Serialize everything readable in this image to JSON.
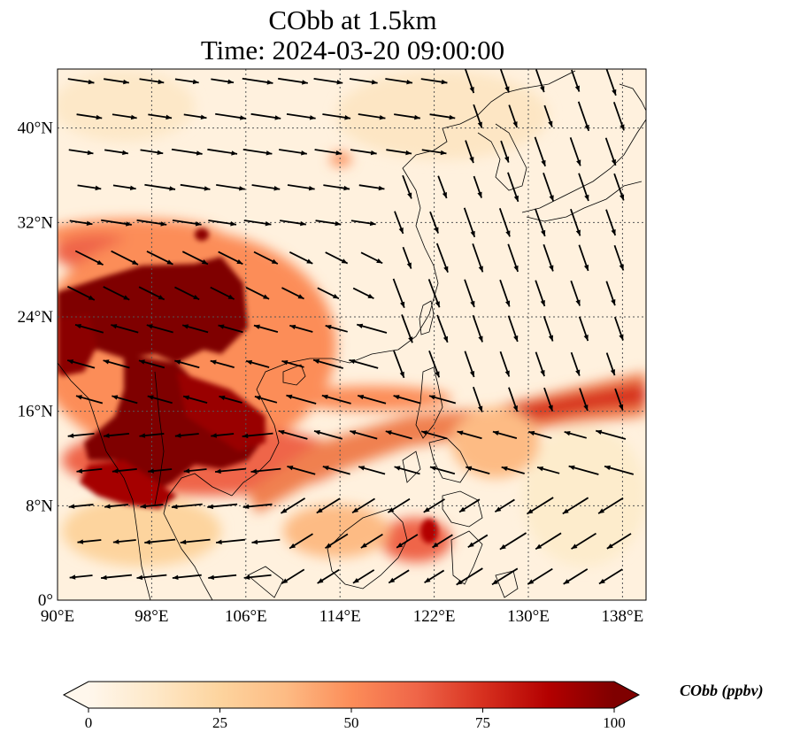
{
  "title": {
    "line1": "CObb at 1.5km",
    "line2": "Time: 2024-03-20 09:00:00"
  },
  "map": {
    "lon_range": [
      90,
      140
    ],
    "lat_range": [
      0,
      45
    ],
    "lon_ticks": [
      {
        "value": 90,
        "label": "90°E"
      },
      {
        "value": 98,
        "label": "98°E"
      },
      {
        "value": 106,
        "label": "106°E"
      },
      {
        "value": 114,
        "label": "114°E"
      },
      {
        "value": 122,
        "label": "122°E"
      },
      {
        "value": 130,
        "label": "130°E"
      },
      {
        "value": 138,
        "label": "138°E"
      }
    ],
    "lat_ticks": [
      {
        "value": 0,
        "label": "0°"
      },
      {
        "value": 8,
        "label": "8°N"
      },
      {
        "value": 16,
        "label": "16°N"
      },
      {
        "value": 24,
        "label": "24°N"
      },
      {
        "value": 32,
        "label": "32°N"
      },
      {
        "value": 40,
        "label": "40°N"
      }
    ],
    "gridlines": true
  },
  "colorbar": {
    "label": "CObb (ppbv)",
    "ticks": [
      {
        "value": 0,
        "label": "0"
      },
      {
        "value": 25,
        "label": "25"
      },
      {
        "value": 50,
        "label": "50"
      },
      {
        "value": 75,
        "label": "75"
      },
      {
        "value": 100,
        "label": "100"
      }
    ],
    "range": [
      0,
      100
    ],
    "colormap": [
      "#fff7ec",
      "#fee8c8",
      "#fdd49e",
      "#fdbb84",
      "#fc8d59",
      "#ef6548",
      "#d7301f",
      "#b30000",
      "#7f0000"
    ],
    "extend": "both"
  }
}
